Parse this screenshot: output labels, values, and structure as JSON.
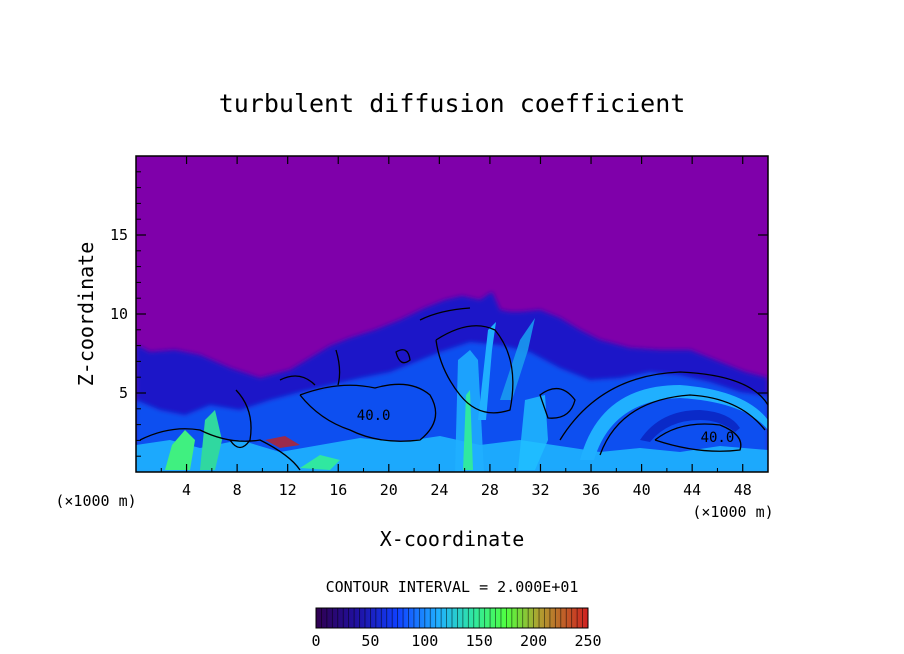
{
  "chart_data": {
    "type": "heatmap",
    "title": "turbulent diffusion coefficient",
    "xlabel": "X-coordinate",
    "ylabel": "Z-coordinate",
    "x_unit_left": "(×1000 m)",
    "x_unit_right": "(×1000 m)",
    "xlim": [
      0,
      50
    ],
    "ylim": [
      0,
      20
    ],
    "x_ticks": [
      4,
      8,
      12,
      16,
      20,
      24,
      28,
      32,
      36,
      40,
      44,
      48
    ],
    "x_tick_labels": [
      "4",
      "8",
      "12",
      "16",
      "20",
      "24",
      "28",
      "32",
      "36",
      "40",
      "44",
      "48"
    ],
    "y_ticks": [
      5,
      10,
      15
    ],
    "y_tick_labels": [
      "5",
      "10",
      "15"
    ],
    "contour_interval_text": "CONTOUR INTERVAL = 2.000E+01",
    "contour_labels": [
      {
        "text": "40.0",
        "x": 18.8,
        "z": 3.3
      },
      {
        "text": "40.0",
        "x": 46.0,
        "z": 1.9
      }
    ],
    "colorbar": {
      "min": 0,
      "max": 250,
      "ticks": [
        0,
        50,
        100,
        150,
        200,
        250
      ],
      "tick_labels": [
        "0",
        "50",
        "100",
        "150",
        "200",
        "250"
      ]
    },
    "colors": {
      "background_field": "#7f00aa",
      "low": "#2a0a8a",
      "mid_low": "#1040ff",
      "mid": "#20b0ff",
      "mid_high": "#30e8a0",
      "high": "#50ff40",
      "max": "#c02020"
    }
  }
}
